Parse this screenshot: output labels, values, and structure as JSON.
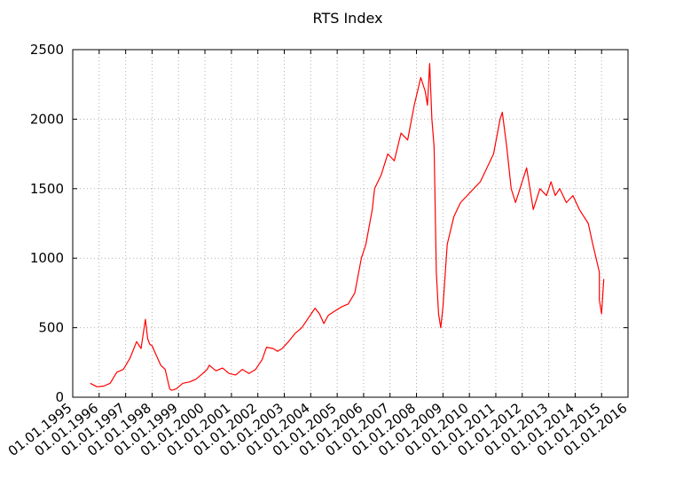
{
  "chart_data": {
    "type": "line",
    "title": "RTS Index",
    "xlabel": "",
    "ylabel": "",
    "xlim": [
      "01.01.1995",
      "01.01.2016"
    ],
    "ylim": [
      0,
      2500
    ],
    "grid": true,
    "x_ticks": [
      "01.01.1995",
      "01.01.1996",
      "01.01.1997",
      "01.01.1998",
      "01.01.1999",
      "01.01.2000",
      "01.01.2001",
      "01.01.2002",
      "01.01.2003",
      "01.01.2004",
      "01.01.2005",
      "01.01.2006",
      "01.01.2007",
      "01.01.2008",
      "01.01.2009",
      "01.01.2010",
      "01.01.2011",
      "01.01.2012",
      "01.01.2013",
      "01.01.2014",
      "01.01.2015",
      "01.01.2016"
    ],
    "y_ticks": [
      "0",
      "500",
      "1000",
      "1500",
      "2000",
      "2500"
    ],
    "series": [
      {
        "color": "#ff0000",
        "x": [
          "01.09.1995",
          "01.12.1995",
          "01.03.1996",
          "01.06.1996",
          "01.09.1996",
          "01.12.1996",
          "01.03.1997",
          "01.06.1997",
          "01.08.1997",
          "01.10.1997",
          "01.11.1997",
          "01.12.1997",
          "01.01.1998",
          "01.03.1998",
          "01.05.1998",
          "01.07.1998",
          "01.09.1998",
          "01.10.1998",
          "01.12.1998",
          "01.03.1999",
          "01.06.1999",
          "01.09.1999",
          "01.12.1999",
          "01.02.2000",
          "01.03.2000",
          "01.06.2000",
          "01.09.2000",
          "01.12.2000",
          "01.03.2001",
          "01.06.2001",
          "01.09.2001",
          "01.12.2001",
          "01.03.2002",
          "01.05.2002",
          "01.08.2002",
          "01.10.2002",
          "01.12.2002",
          "01.03.2003",
          "01.06.2003",
          "01.09.2003",
          "01.12.2003",
          "01.03.2004",
          "01.05.2004",
          "01.07.2004",
          "01.09.2004",
          "01.12.2004",
          "01.03.2005",
          "01.06.2005",
          "01.09.2005",
          "01.12.2005",
          "01.02.2006",
          "01.05.2006",
          "01.06.2006",
          "01.09.2006",
          "01.12.2006",
          "01.03.2007",
          "01.06.2007",
          "01.09.2007",
          "01.12.2007",
          "01.03.2008",
          "01.05.2008",
          "01.06.2008",
          "01.07.2008",
          "01.08.2008",
          "01.09.2008",
          "01.10.2008",
          "01.11.2008",
          "01.12.2008",
          "01.01.2009",
          "01.03.2009",
          "01.06.2009",
          "01.09.2009",
          "01.12.2009",
          "01.03.2010",
          "01.06.2010",
          "01.09.2010",
          "01.12.2010",
          "01.03.2011",
          "01.04.2011",
          "01.06.2011",
          "01.08.2011",
          "01.10.2011",
          "01.12.2011",
          "01.03.2012",
          "01.06.2012",
          "01.09.2012",
          "01.12.2012",
          "01.02.2013",
          "01.04.2013",
          "01.06.2013",
          "01.09.2013",
          "01.12.2013",
          "01.03.2014",
          "01.05.2014",
          "01.07.2014",
          "01.09.2014",
          "01.12.2014",
          "01.12.2014",
          "01.01.2015",
          "01.02.2015"
        ],
        "y": [
          100,
          75,
          80,
          100,
          180,
          200,
          280,
          400,
          350,
          560,
          420,
          380,
          370,
          300,
          230,
          200,
          60,
          50,
          60,
          100,
          110,
          130,
          170,
          200,
          230,
          190,
          210,
          170,
          160,
          200,
          170,
          200,
          270,
          360,
          350,
          330,
          350,
          400,
          460,
          500,
          570,
          640,
          600,
          530,
          590,
          620,
          650,
          670,
          750,
          1000,
          1100,
          1350,
          1500,
          1600,
          1750,
          1700,
          1900,
          1850,
          2100,
          2300,
          2200,
          2100,
          2400,
          2000,
          1800,
          900,
          600,
          500,
          650,
          1100,
          1300,
          1400,
          1450,
          1500,
          1550,
          1650,
          1750,
          2000,
          2050,
          1800,
          1500,
          1400,
          1500,
          1650,
          1350,
          1500,
          1450,
          1550,
          1450,
          1500,
          1400,
          1450,
          1350,
          1300,
          1250,
          1100,
          900,
          700,
          600,
          850
        ]
      }
    ]
  }
}
